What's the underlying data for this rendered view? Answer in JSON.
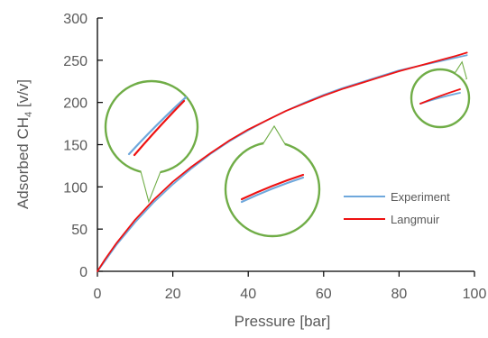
{
  "chart_data": {
    "type": "line",
    "xlabel": "Pressure [bar]",
    "ylabel": {
      "prefix": "Adsorbed CH",
      "subscript": "4",
      "suffix": " [v/v]"
    },
    "xlim": [
      0,
      100
    ],
    "ylim": [
      0,
      300
    ],
    "xticks": [
      0,
      20,
      40,
      60,
      80,
      100
    ],
    "yticks": [
      0,
      50,
      100,
      150,
      200,
      250,
      300
    ],
    "grid": false,
    "legend_position": "bottom-right",
    "series": [
      {
        "name": "Experiment",
        "color": "#6fa8dc",
        "x": [
          0,
          2,
          5,
          10,
          15,
          20,
          25,
          30,
          35,
          40,
          45,
          50,
          55,
          60,
          65,
          70,
          75,
          80,
          85,
          90,
          95,
          98
        ],
        "y": [
          0,
          12,
          31,
          58,
          82,
          103,
          122,
          139,
          154,
          167,
          179,
          190,
          200,
          209,
          217,
          224,
          231,
          238,
          243,
          248,
          253,
          256
        ]
      },
      {
        "name": "Langmuir",
        "color": "#ee1111",
        "x": [
          0,
          2,
          5,
          10,
          15,
          20,
          25,
          30,
          35,
          40,
          45,
          50,
          55,
          60,
          65,
          70,
          75,
          80,
          85,
          90,
          95,
          98
        ],
        "y": [
          0,
          14,
          33,
          61,
          85,
          106,
          124,
          140,
          155,
          168,
          179,
          190,
          199,
          208,
          216,
          223,
          230,
          237,
          243,
          249,
          255,
          259
        ]
      }
    ],
    "annotations": [
      {
        "type": "zoom-callout",
        "pointer_target": "low-pressure region of curves"
      },
      {
        "type": "zoom-callout",
        "pointer_target": "mid-pressure region of curves"
      },
      {
        "type": "zoom-callout",
        "pointer_target": "high-pressure region of curves"
      }
    ],
    "callout_color": "#70ad47"
  }
}
